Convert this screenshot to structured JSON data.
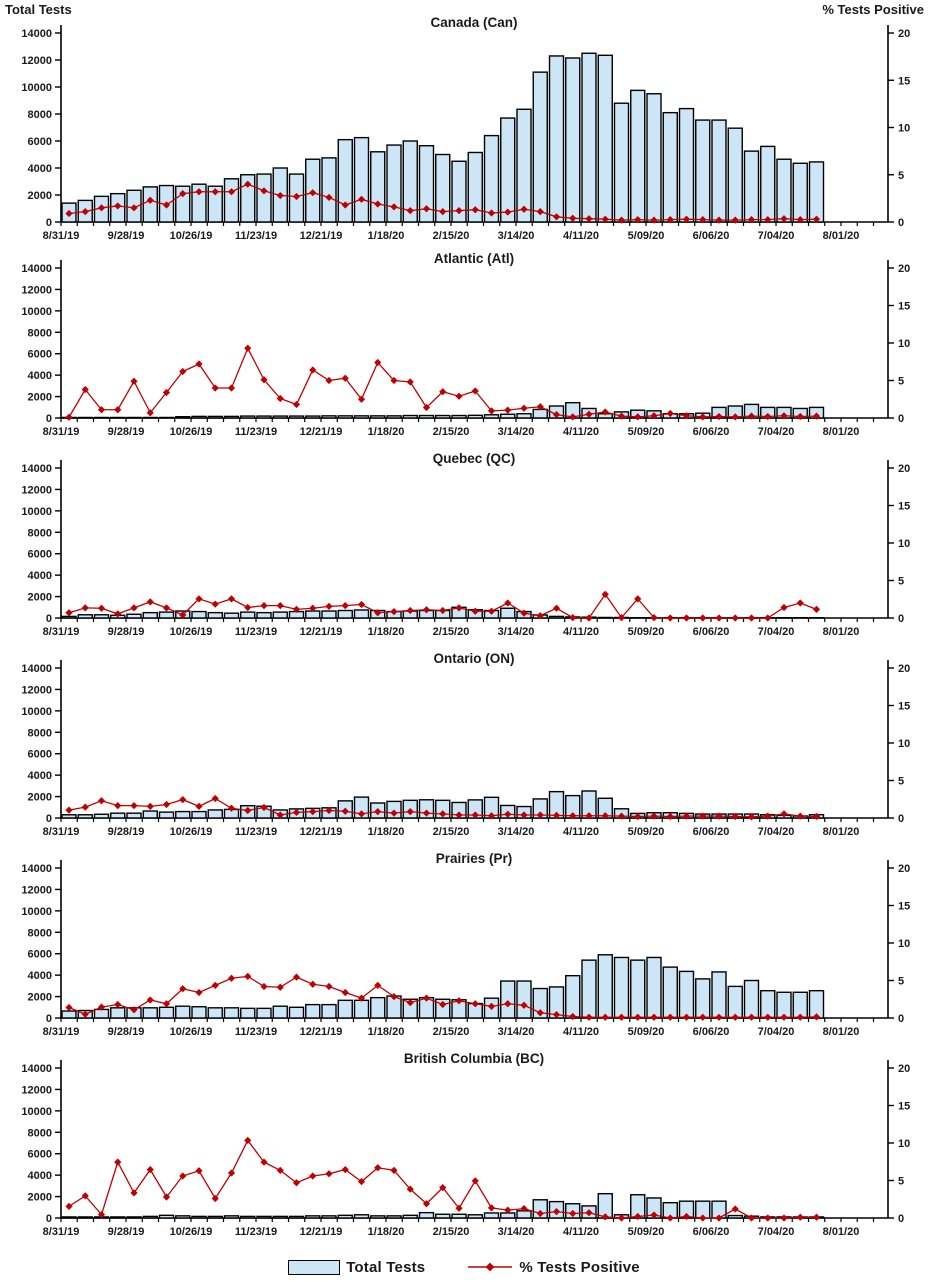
{
  "header": {
    "left_axis_title": "Total Tests",
    "right_axis_title": "% Tests Positive"
  },
  "legend": {
    "bar_label": "Total Tests",
    "line_label": "% Tests Positive"
  },
  "colors": {
    "bar_fill": "#CCE5F7",
    "bar_stroke": "#000000",
    "line": "#C00000",
    "text": "#1A1A1A"
  },
  "axis": {
    "x_tick_labels": [
      "8/31/19",
      "9/28/19",
      "10/26/19",
      "11/23/19",
      "12/21/19",
      "1/18/20",
      "2/15/20",
      "3/14/20",
      "4/11/20",
      "5/09/20",
      "6/06/20",
      "7/04/20",
      "8/01/20"
    ],
    "left_ticks": [
      0,
      2000,
      4000,
      6000,
      8000,
      10000,
      12000,
      14000
    ],
    "right_ticks": [
      0,
      5,
      10,
      15,
      20
    ],
    "left_max": 14000,
    "right_max": 20,
    "grid": false
  },
  "chart_data": [
    {
      "type": "bar+line",
      "title": "Canada (Can)",
      "ylabel_left": "Total Tests",
      "ylabel_right": "% Tests Positive",
      "ylim_left": [
        0,
        14000
      ],
      "ylim_right": [
        0,
        20
      ],
      "total_tests": [
        1400,
        1600,
        1900,
        2100,
        2350,
        2600,
        2700,
        2650,
        2800,
        2650,
        3200,
        3500,
        3550,
        4000,
        3550,
        4650,
        4750,
        6100,
        6250,
        5200,
        5700,
        6000,
        5650,
        5000,
        4500,
        5150,
        6400,
        7700,
        8350,
        11100,
        12300,
        12150,
        12500,
        12350,
        8800,
        9750,
        9500,
        8100,
        8400,
        7550,
        7550,
        6950,
        5250,
        5600,
        4650,
        4350,
        4450
      ],
      "pct_positive": [
        0.9,
        1.1,
        1.5,
        1.7,
        1.5,
        2.3,
        1.8,
        3.0,
        3.2,
        3.2,
        3.2,
        4.0,
        3.3,
        2.8,
        2.7,
        3.1,
        2.6,
        1.8,
        2.4,
        1.9,
        1.6,
        1.2,
        1.4,
        1.1,
        1.2,
        1.3,
        0.95,
        1.05,
        1.35,
        1.1,
        0.55,
        0.4,
        0.35,
        0.3,
        0.2,
        0.25,
        0.2,
        0.25,
        0.3,
        0.25,
        0.2,
        0.2,
        0.25,
        0.25,
        0.35,
        0.25,
        0.3
      ]
    },
    {
      "type": "bar+line",
      "title": "Atlantic (Atl)",
      "ylim_left": [
        0,
        14000
      ],
      "ylim_right": [
        0,
        20
      ],
      "total_tests": [
        50,
        50,
        50,
        50,
        50,
        50,
        50,
        120,
        150,
        150,
        150,
        180,
        180,
        180,
        180,
        180,
        200,
        200,
        200,
        200,
        200,
        230,
        230,
        230,
        230,
        250,
        300,
        350,
        400,
        800,
        1120,
        1430,
        890,
        400,
        570,
        730,
        670,
        400,
        400,
        450,
        990,
        1120,
        1270,
        990,
        990,
        890,
        990
      ],
      "pct_positive": [
        0.1,
        3.8,
        1.1,
        1.1,
        4.9,
        0.7,
        3.4,
        6.2,
        7.2,
        4.0,
        4.0,
        9.3,
        5.1,
        2.6,
        1.8,
        6.4,
        5.0,
        5.3,
        2.5,
        7.4,
        5.0,
        4.8,
        1.4,
        3.5,
        2.9,
        3.6,
        0.95,
        1.05,
        1.3,
        1.5,
        0.45,
        0.15,
        0.5,
        0.8,
        0.25,
        0.15,
        0.3,
        0.6,
        0.3,
        0.15,
        0.2,
        0.15,
        0.25,
        0.2,
        0.3,
        0.2,
        0.25
      ]
    },
    {
      "type": "bar+line",
      "title": "Quebec (QC)",
      "ylim_left": [
        0,
        14000
      ],
      "ylim_right": [
        0,
        20
      ],
      "total_tests": [
        150,
        300,
        300,
        250,
        350,
        500,
        550,
        650,
        600,
        500,
        450,
        550,
        500,
        550,
        600,
        650,
        650,
        700,
        750,
        700,
        600,
        650,
        700,
        700,
        1000,
        770,
        700,
        910,
        600,
        280,
        150,
        100,
        80,
        50,
        50,
        30,
        30,
        30,
        30,
        30,
        30,
        30,
        30,
        30,
        30,
        30,
        30
      ],
      "pct_positive": [
        0.7,
        1.35,
        1.3,
        0.55,
        1.35,
        2.15,
        1.35,
        0.4,
        2.55,
        1.85,
        2.55,
        1.4,
        1.65,
        1.65,
        1.15,
        1.3,
        1.55,
        1.65,
        1.8,
        0.7,
        0.85,
        1.0,
        1.1,
        1.0,
        1.35,
        0.9,
        0.9,
        2.0,
        0.65,
        0.3,
        1.3,
        0.05,
        0,
        3.15,
        0.05,
        2.55,
        0.05,
        0,
        0,
        0,
        0,
        0,
        0,
        0,
        1.4,
        2.0,
        1.15
      ]
    },
    {
      "type": "bar+line",
      "title": "Ontario (ON)",
      "ylim_left": [
        0,
        14000
      ],
      "ylim_right": [
        0,
        20
      ],
      "total_tests": [
        300,
        300,
        350,
        450,
        450,
        650,
        550,
        600,
        600,
        750,
        800,
        1150,
        1100,
        750,
        850,
        900,
        950,
        1600,
        1950,
        1400,
        1550,
        1650,
        1700,
        1650,
        1450,
        1690,
        1930,
        1170,
        1070,
        1780,
        2460,
        2090,
        2520,
        1840,
        860,
        430,
        490,
        490,
        430,
        370,
        370,
        370,
        370,
        310,
        250,
        190,
        310
      ],
      "pct_positive": [
        1.05,
        1.45,
        2.3,
        1.65,
        1.65,
        1.55,
        1.8,
        2.45,
        1.55,
        2.6,
        1.3,
        1.0,
        1.4,
        0.4,
        0.75,
        0.85,
        1.0,
        0.9,
        0.55,
        0.85,
        0.65,
        0.85,
        0.65,
        0.55,
        0.4,
        0.4,
        0.3,
        0.5,
        0.4,
        0.4,
        0.35,
        0.3,
        0.3,
        0.3,
        0.25,
        0.2,
        0.25,
        0.2,
        0.25,
        0.25,
        0.25,
        0.2,
        0.15,
        0.25,
        0.55,
        0.25,
        0.2
      ]
    },
    {
      "type": "bar+line",
      "title": "Prairies (Pr)",
      "ylim_left": [
        0,
        14000
      ],
      "ylim_right": [
        0,
        20
      ],
      "total_tests": [
        650,
        700,
        800,
        950,
        950,
        950,
        1000,
        1100,
        1050,
        950,
        950,
        900,
        900,
        1100,
        1000,
        1250,
        1250,
        1650,
        1650,
        1900,
        2050,
        1750,
        1900,
        1750,
        1700,
        1350,
        1850,
        3450,
        3450,
        2750,
        2900,
        3950,
        5400,
        5900,
        5650,
        5400,
        5650,
        4750,
        4350,
        3650,
        4300,
        2950,
        3500,
        2550,
        2400,
        2400,
        2550
      ],
      "pct_positive": [
        1.4,
        0.5,
        1.45,
        1.8,
        1.1,
        2.4,
        1.9,
        3.9,
        3.4,
        4.35,
        5.3,
        5.55,
        4.2,
        4.1,
        5.45,
        4.5,
        4.2,
        3.4,
        2.65,
        4.35,
        2.85,
        2.05,
        2.65,
        1.8,
        2.3,
        1.9,
        1.55,
        1.9,
        1.7,
        0.7,
        0.45,
        0.2,
        0.1,
        0.1,
        0.1,
        0.1,
        0.1,
        0.1,
        0.1,
        0.1,
        0.1,
        0.1,
        0.1,
        0.1,
        0.1,
        0.1,
        0.15
      ]
    },
    {
      "type": "bar+line",
      "title": "British Columbia (BC)",
      "ylim_left": [
        0,
        14000
      ],
      "ylim_right": [
        0,
        20
      ],
      "total_tests": [
        100,
        100,
        100,
        100,
        100,
        150,
        250,
        200,
        150,
        150,
        200,
        150,
        150,
        150,
        150,
        200,
        200,
        250,
        300,
        200,
        200,
        250,
        500,
        350,
        350,
        300,
        470,
        470,
        670,
        1700,
        1530,
        1330,
        1130,
        2270,
        300,
        2170,
        1870,
        1430,
        1570,
        1570,
        1570,
        230,
        170,
        100,
        100,
        100,
        100
      ],
      "pct_positive": [
        1.55,
        2.95,
        0.45,
        7.45,
        3.35,
        6.45,
        2.8,
        5.6,
        6.3,
        2.6,
        6.0,
        10.35,
        7.45,
        6.35,
        4.7,
        5.6,
        5.9,
        6.45,
        4.85,
        6.7,
        6.35,
        3.85,
        1.9,
        4.05,
        1.3,
        4.95,
        1.35,
        1.05,
        1.25,
        0.6,
        0.85,
        0.6,
        0.7,
        0.15,
        0,
        0.2,
        0.4,
        0,
        0.2,
        0,
        0,
        1.2,
        0,
        0,
        0,
        0.1,
        0.1
      ]
    }
  ]
}
